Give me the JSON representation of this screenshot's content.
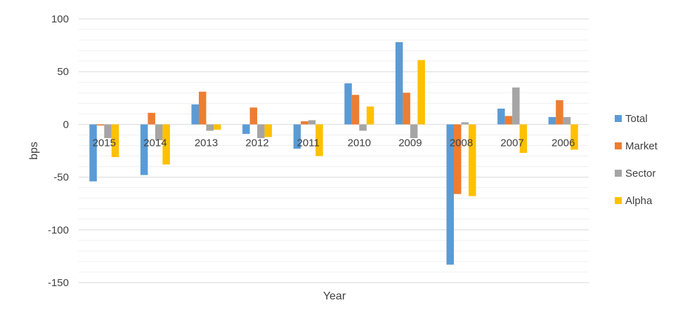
{
  "chart_data": {
    "type": "bar",
    "title": "",
    "xlabel": "Year",
    "ylabel": "bps",
    "categories": [
      "2015",
      "2014",
      "2013",
      "2012",
      "2011",
      "2010",
      "2009",
      "2008",
      "2007",
      "2006"
    ],
    "series": [
      {
        "name": "Total",
        "color": "#5B9BD5",
        "values": [
          -54,
          -48,
          19,
          -9,
          -23,
          39,
          78,
          -133,
          15,
          7
        ]
      },
      {
        "name": "Market",
        "color": "#ED7D31",
        "values": [
          -1,
          11,
          31,
          16,
          3,
          28,
          30,
          -66,
          8,
          23
        ]
      },
      {
        "name": "Sector",
        "color": "#A5A5A5",
        "values": [
          -13,
          -15,
          -6,
          -13,
          4,
          -6,
          -13,
          2,
          35,
          7
        ]
      },
      {
        "name": "Alpha",
        "color": "#FFC000",
        "values": [
          -31,
          -38,
          -5,
          -12,
          -30,
          17,
          61,
          -68,
          -27,
          -24
        ]
      }
    ],
    "ylim": [
      -150,
      100
    ],
    "yticks": [
      100,
      50,
      0,
      -50,
      -100,
      -150
    ],
    "grid": true,
    "legend_position": "right"
  }
}
